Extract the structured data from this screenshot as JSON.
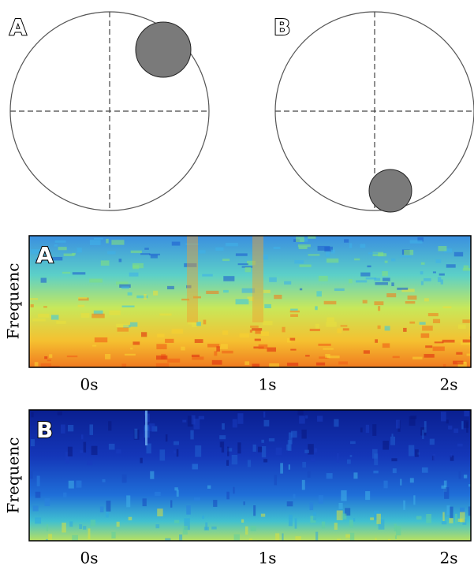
{
  "panels": [
    {
      "label": "A"
    },
    {
      "label": "B"
    }
  ],
  "spectrograms": [
    {
      "label": "A",
      "y_label": "Frequenc",
      "x_ticks": [
        "0s",
        "1s",
        "2s"
      ]
    },
    {
      "label": "B",
      "y_label": "Frequenc",
      "x_ticks": [
        "0s",
        "1s",
        "2s"
      ]
    }
  ]
}
